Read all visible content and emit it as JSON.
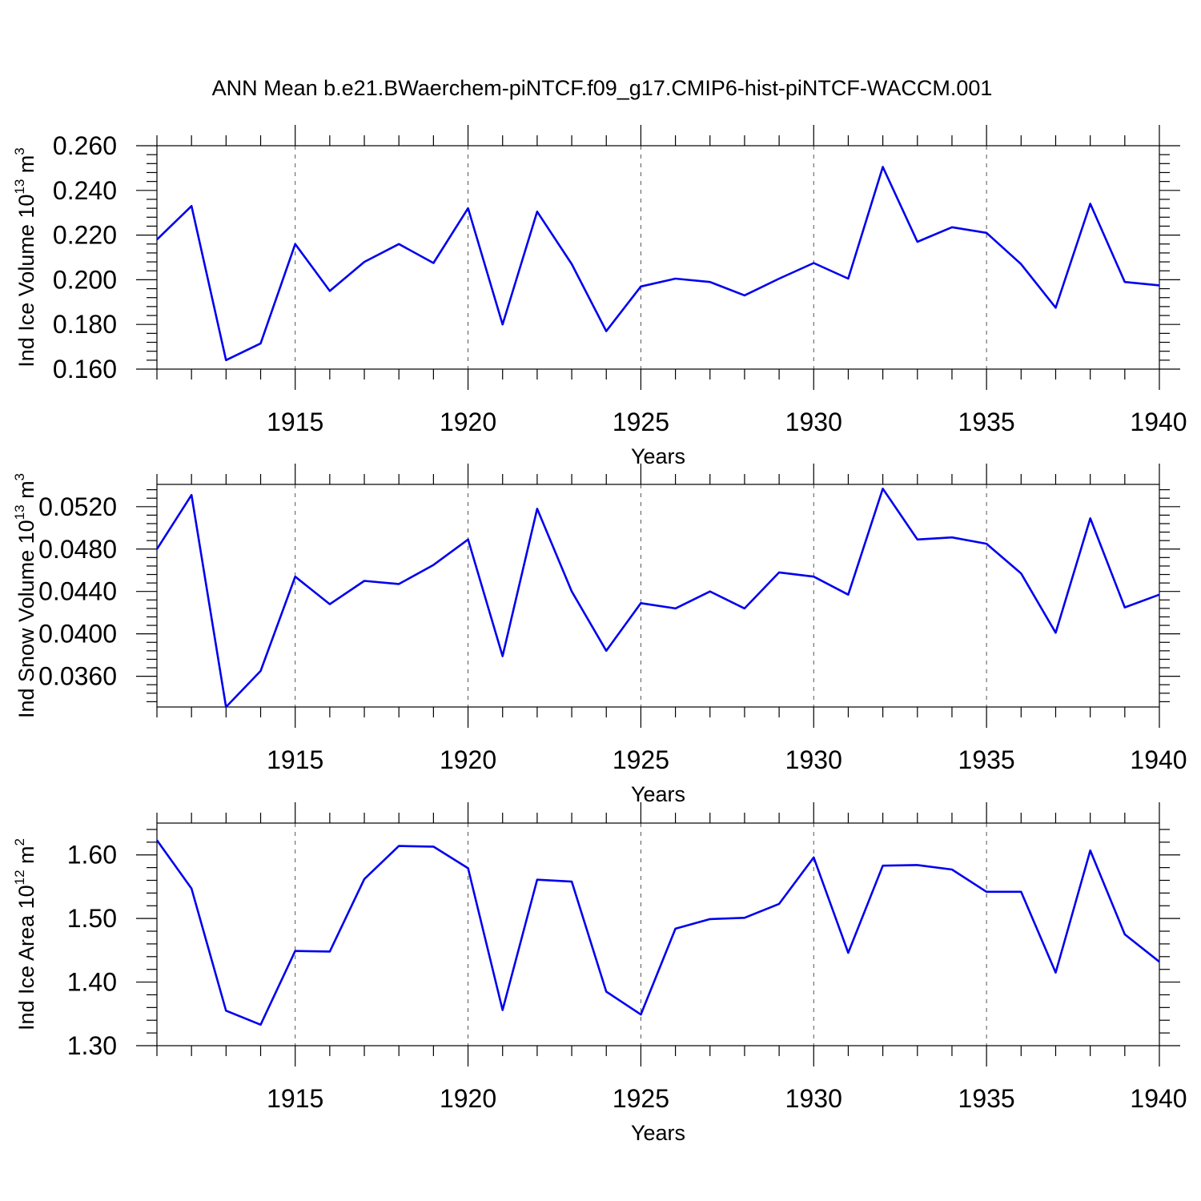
{
  "figure": {
    "title": "ANN Mean b.e21.BWaerchem-piNTCF.f09_g17.CMIP6-hist-piNTCF-WACCM.001",
    "line_color": "#0000ee"
  },
  "chart_data": [
    {
      "type": "line",
      "xlabel": "Years",
      "ylabel": "Ind Ice Volume 10",
      "ylabel_power": "13",
      "ylabel_unit": " m",
      "ylabel_unit_power": "3",
      "xlim": [
        1911,
        1940
      ],
      "ylim": [
        0.16,
        0.26
      ],
      "xticks": [
        "1915",
        "1920",
        "1925",
        "1930",
        "1935",
        "1940"
      ],
      "yticks": [
        "0.160",
        "0.180",
        "0.200",
        "0.220",
        "0.240",
        "0.260"
      ],
      "x": [
        1911,
        1912,
        1913,
        1914,
        1915,
        1916,
        1917,
        1918,
        1919,
        1920,
        1921,
        1922,
        1923,
        1924,
        1925,
        1926,
        1927,
        1928,
        1929,
        1930,
        1931,
        1932,
        1933,
        1934,
        1935,
        1936,
        1937,
        1938,
        1939,
        1940
      ],
      "y": [
        0.218,
        0.233,
        0.164,
        0.1715,
        0.216,
        0.195,
        0.208,
        0.216,
        0.2075,
        0.232,
        0.18,
        0.2305,
        0.207,
        0.177,
        0.197,
        0.2005,
        0.199,
        0.193,
        0.2005,
        0.2075,
        0.2005,
        0.2505,
        0.217,
        0.2235,
        0.221,
        0.207,
        0.1875,
        0.234,
        0.199,
        0.1975
      ]
    },
    {
      "type": "line",
      "xlabel": "Years",
      "ylabel": "Ind Snow Volume 10",
      "ylabel_power": "13",
      "ylabel_unit": " m",
      "ylabel_unit_power": "3",
      "xlim": [
        1911,
        1940
      ],
      "ylim": [
        0.0331,
        0.0541
      ],
      "xticks": [
        "1915",
        "1920",
        "1925",
        "1930",
        "1935",
        "1940"
      ],
      "yticks": [
        "0.0360",
        "0.0400",
        "0.0440",
        "0.0480",
        "0.0520"
      ],
      "x": [
        1911,
        1912,
        1913,
        1914,
        1915,
        1916,
        1917,
        1918,
        1919,
        1920,
        1921,
        1922,
        1923,
        1924,
        1925,
        1926,
        1927,
        1928,
        1929,
        1930,
        1931,
        1932,
        1933,
        1934,
        1935,
        1936,
        1937,
        1938,
        1939,
        1940
      ],
      "y": [
        0.048,
        0.0531,
        0.0331,
        0.0365,
        0.0454,
        0.0428,
        0.045,
        0.0447,
        0.0465,
        0.0489,
        0.0379,
        0.0518,
        0.044,
        0.0384,
        0.0429,
        0.0424,
        0.044,
        0.0424,
        0.0458,
        0.0454,
        0.0437,
        0.0537,
        0.0489,
        0.0491,
        0.0485,
        0.0457,
        0.0401,
        0.0509,
        0.0425,
        0.0437
      ]
    },
    {
      "type": "line",
      "xlabel": "Years",
      "ylabel": "Ind Ice Area 10",
      "ylabel_power": "12",
      "ylabel_unit": " m",
      "ylabel_unit_power": "2",
      "xlim": [
        1911,
        1940
      ],
      "ylim": [
        1.3,
        1.65
      ],
      "xticks": [
        "1915",
        "1920",
        "1925",
        "1930",
        "1935",
        "1940"
      ],
      "yticks": [
        "1.30",
        "1.40",
        "1.50",
        "1.60"
      ],
      "x": [
        1911,
        1912,
        1913,
        1914,
        1915,
        1916,
        1917,
        1918,
        1919,
        1920,
        1921,
        1922,
        1923,
        1924,
        1925,
        1926,
        1927,
        1928,
        1929,
        1930,
        1931,
        1932,
        1933,
        1934,
        1935,
        1936,
        1937,
        1938,
        1939,
        1940
      ],
      "y": [
        1.623,
        1.547,
        1.355,
        1.333,
        1.449,
        1.448,
        1.562,
        1.614,
        1.613,
        1.579,
        1.356,
        1.561,
        1.558,
        1.385,
        1.349,
        1.484,
        1.499,
        1.501,
        1.523,
        1.596,
        1.446,
        1.583,
        1.584,
        1.577,
        1.542,
        1.542,
        1.415,
        1.607,
        1.475,
        1.432
      ]
    }
  ]
}
